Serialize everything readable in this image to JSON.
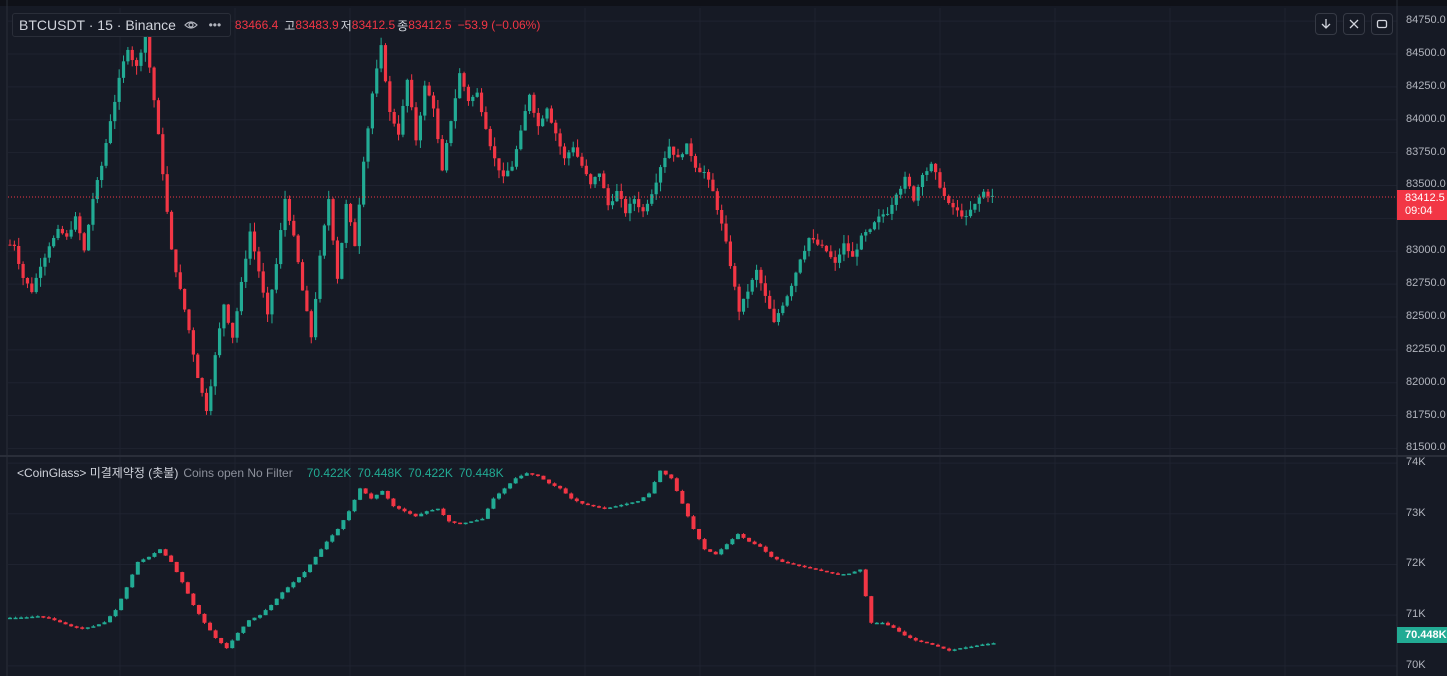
{
  "header": {
    "symbol": "BTCUSDT · 15 · Binance",
    "eye_icon": "eye-icon",
    "more_icon": "more-dots-icon",
    "open_label": "",
    "open_value": "83466.4",
    "high_label": "고",
    "high_value": "83483.9",
    "low_label": "저",
    "low_value": "83412.5",
    "close_label": "종",
    "close_value": "83412.5",
    "change": "−53.9 (−0.06%)"
  },
  "toolbar": {
    "download_icon": "arrow-down-icon",
    "collapse_icon": "collapse-icon",
    "fullscreen_icon": "fullscreen-icon"
  },
  "price_axis": {
    "ticks": [
      "84750.0",
      "84500.0",
      "84250.0",
      "84000.0",
      "83750.0",
      "83500.0",
      "83250.0",
      "83000.0",
      "82750.0",
      "82500.0",
      "82250.0",
      "82000.0",
      "81750.0",
      "81500.0"
    ],
    "current_price": "83412.5",
    "countdown": "09:04"
  },
  "oi_legend": {
    "title": "<CoinGlass> 미결제약정 (촛불)",
    "subtitle": "Coins open No Filter",
    "v1": "70.422K",
    "v2": "70.448K",
    "v3": "70.422K",
    "v4": "70.448K"
  },
  "oi_axis": {
    "ticks": [
      "74K",
      "73K",
      "72K",
      "71K",
      "70K"
    ],
    "current_value": "70.448K"
  },
  "colors": {
    "up": "#22ab94",
    "down": "#f23645",
    "background": "#161a25",
    "grid": "#1f2330"
  },
  "chart_data": [
    {
      "type": "candlestick",
      "ylim": [
        81450,
        84850
      ],
      "series_points": [
        83050,
        82800,
        82700,
        82900,
        83050,
        83150,
        83100,
        83250,
        83000,
        83400,
        83650,
        84000,
        84300,
        84550,
        84400,
        84650,
        84150,
        83600,
        83000,
        82700,
        82400,
        82050,
        81800,
        82200,
        82600,
        82350,
        82750,
        83150,
        82850,
        82500,
        82900,
        83400,
        83100,
        82700,
        82350,
        82950,
        83400,
        82800,
        83350,
        83050,
        83700,
        84200,
        84550,
        84050,
        83900,
        84300,
        83850,
        84250,
        84100,
        83600,
        84000,
        84350,
        84150,
        84200,
        83950,
        83700,
        83550,
        83650,
        83900,
        84200,
        83950,
        84100,
        83900,
        83700,
        83800,
        83650,
        83500,
        83600,
        83350,
        83450,
        83300,
        83400,
        83300,
        83450,
        83650,
        83800,
        83700,
        83800,
        83650,
        83600,
        83450,
        83200,
        82900,
        82550,
        82700,
        82850,
        82650,
        82450,
        82600,
        82750,
        82950,
        83100,
        83050,
        83000,
        82900,
        83050,
        82950,
        83100,
        83150,
        83250,
        83300,
        83450,
        83550,
        83400,
        83600,
        83650,
        83500,
        83350,
        83300,
        83250,
        83350,
        83450,
        83412.5
      ]
    },
    {
      "type": "candlestick",
      "ylim": [
        69800,
        74100
      ],
      "series_points": [
        70950,
        70960,
        70980,
        70940,
        70860,
        70780,
        70740,
        70780,
        70860,
        71100,
        71550,
        72050,
        72150,
        72300,
        72050,
        71650,
        71200,
        70850,
        70550,
        70350,
        70650,
        70900,
        71000,
        71200,
        71450,
        71650,
        71850,
        72150,
        72450,
        72700,
        73050,
        73500,
        73300,
        73450,
        73150,
        73050,
        72950,
        73050,
        73100,
        72850,
        72800,
        72850,
        72900,
        73300,
        73500,
        73700,
        73800,
        73750,
        73600,
        73500,
        73300,
        73200,
        73150,
        73100,
        73150,
        73200,
        73250,
        73400,
        73850,
        73700,
        73200,
        72700,
        72300,
        72200,
        72400,
        72600,
        72450,
        72350,
        72150,
        72050,
        72000,
        71950,
        71900,
        71850,
        71800,
        71820,
        71900,
        70850,
        70850,
        70750,
        70600,
        70500,
        70450,
        70380,
        70300,
        70350,
        70380,
        70422,
        70448
      ]
    }
  ]
}
